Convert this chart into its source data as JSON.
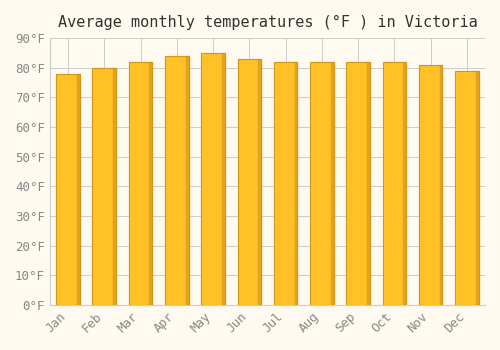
{
  "title": "Average monthly temperatures (°F ) in Victoria",
  "months": [
    "Jan",
    "Feb",
    "Mar",
    "Apr",
    "May",
    "Jun",
    "Jul",
    "Aug",
    "Sep",
    "Oct",
    "Nov",
    "Dec"
  ],
  "values": [
    78,
    80,
    82,
    84,
    85,
    83,
    82,
    82,
    82,
    82,
    81,
    79
  ],
  "bar_color_main": "#FFC125",
  "bar_color_edge": "#D4961A",
  "background_color": "#FFFAF0",
  "grid_color": "#CCCCCC",
  "ylim": [
    0,
    90
  ],
  "yticks": [
    0,
    10,
    20,
    30,
    40,
    50,
    60,
    70,
    80,
    90
  ],
  "ytick_labels": [
    "0°F",
    "10°F",
    "20°F",
    "30°F",
    "40°F",
    "50°F",
    "60°F",
    "70°F",
    "80°F",
    "90°F"
  ],
  "title_fontsize": 11,
  "tick_fontsize": 9,
  "font_family": "monospace"
}
